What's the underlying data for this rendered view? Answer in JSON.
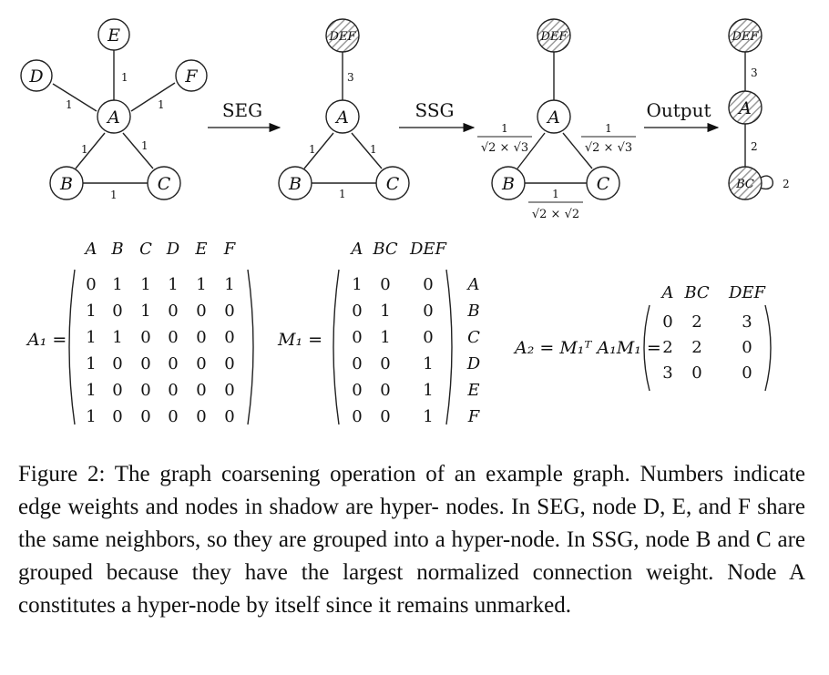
{
  "nodes": {
    "A": "A",
    "B": "B",
    "C": "C",
    "D": "D",
    "E": "E",
    "F": "F",
    "DEF": "DEF",
    "BC": "BC"
  },
  "edge_weights": {
    "g1_EA": "1",
    "g1_DA": "1",
    "g1_FA": "1",
    "g1_AB": "1",
    "g1_AC": "1",
    "g1_BC": "1",
    "g2_DEFA": "3",
    "g2_AB": "1",
    "g2_AC": "1",
    "g2_BC": "1",
    "g4_DEFA": "3",
    "g4_ABC": "2",
    "g4_BCself": "2"
  },
  "ssg_weights": {
    "numerator": "1",
    "ab_den": "√2 × √3",
    "ac_den": "√2 × √3",
    "bc_den": "√2 × √2"
  },
  "arrows": {
    "seg": "SEG",
    "ssg": "SSG",
    "output": "Output"
  },
  "matrices": {
    "A1": {
      "lhs": "A₁ =",
      "col_headers": [
        "A",
        "B",
        "C",
        "D",
        "E",
        "F"
      ],
      "rows": [
        [
          "0",
          "1",
          "1",
          "1",
          "1",
          "1"
        ],
        [
          "1",
          "0",
          "1",
          "0",
          "0",
          "0"
        ],
        [
          "1",
          "1",
          "0",
          "0",
          "0",
          "0"
        ],
        [
          "1",
          "0",
          "0",
          "0",
          "0",
          "0"
        ],
        [
          "1",
          "0",
          "0",
          "0",
          "0",
          "0"
        ],
        [
          "1",
          "0",
          "0",
          "0",
          "0",
          "0"
        ]
      ]
    },
    "M1": {
      "lhs": "M₁ =",
      "col_headers": [
        "A",
        "BC",
        "DEF"
      ],
      "row_labels": [
        "A",
        "B",
        "C",
        "D",
        "E",
        "F"
      ],
      "rows": [
        [
          "1",
          "0",
          "0"
        ],
        [
          "0",
          "1",
          "0"
        ],
        [
          "0",
          "1",
          "0"
        ],
        [
          "0",
          "0",
          "1"
        ],
        [
          "0",
          "0",
          "1"
        ],
        [
          "0",
          "0",
          "1"
        ]
      ]
    },
    "A2": {
      "lhs": "A₂ = M₁ᵀ A₁M₁ =",
      "col_headers": [
        "A",
        "BC",
        "DEF"
      ],
      "rows": [
        [
          "0",
          "2",
          "3"
        ],
        [
          "2",
          "2",
          "0"
        ],
        [
          "3",
          "0",
          "0"
        ]
      ]
    }
  },
  "caption": {
    "line1": "Figure 2: The graph coarsening operation of an example graph.",
    "line2": "Numbers indicate edge weights and nodes in shadow are hyper-",
    "line3": "nodes. In SEG, node D, E, and F share the same neighbors, so they",
    "line4": "are grouped into a hyper-node. In SSG, node B and C are grouped",
    "line5": "because they have the largest normalized connection weight. Node",
    "line6": "A constitutes a hyper-node by itself since it remains unmarked."
  }
}
